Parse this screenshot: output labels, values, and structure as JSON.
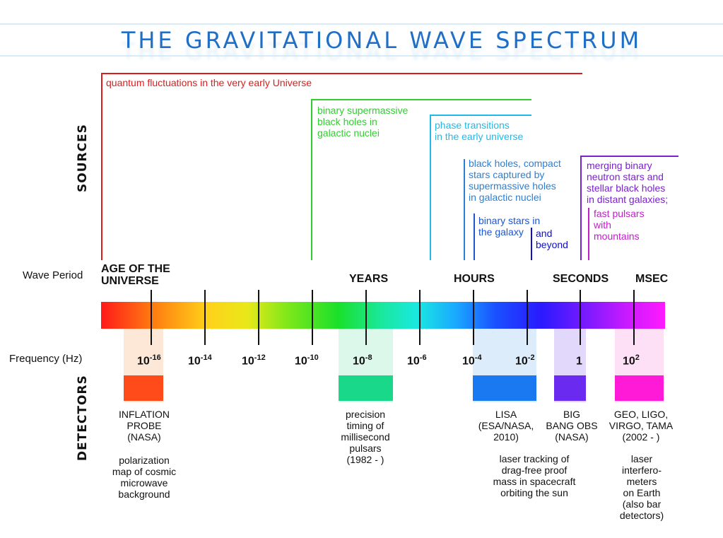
{
  "title": "THE GRAVITATIONAL WAVE SPECTRUM",
  "axis_labels": {
    "sources": "SOURCES",
    "detectors": "DETECTORS",
    "wave_period": "Wave Period",
    "frequency": "Frequency (Hz)"
  },
  "sources": {
    "quantum": {
      "text": "quantum fluctuations in the very early Universe",
      "color": "#e01b1b"
    },
    "smbh": {
      "text": "binary supermassive\nblack holes in\ngalactic nuclei",
      "color": "#33cc33"
    },
    "phase": {
      "text": "phase transitions\nin the early universe",
      "color": "#22b8e8"
    },
    "capture": {
      "text": "black holes, compact\nstars captured by\nsupermassive holes\nin galactic nuclei",
      "color": "#2a7fd6"
    },
    "binary_galaxy": {
      "text": "binary stars in\nthe galaxy",
      "color": "#1e55d0"
    },
    "beyond": {
      "text": "and\nbeyond",
      "color": "#1010c8"
    },
    "merging": {
      "text": "merging binary\nneutron stars and\nstellar black holes\nin distant galaxies;",
      "color": "#7a22cc"
    },
    "pulsars": {
      "text": "fast pulsars\nwith\nmountains",
      "color": "#c020c8"
    }
  },
  "periods": {
    "age": "AGE OF THE\nUNIVERSE",
    "years": "YEARS",
    "hours": "HOURS",
    "seconds": "SECONDS",
    "msec": "MSEC"
  },
  "frequencies": [
    {
      "base": "10",
      "exp": "-16"
    },
    {
      "base": "10",
      "exp": "-14"
    },
    {
      "base": "10",
      "exp": "-12"
    },
    {
      "base": "10",
      "exp": "-10"
    },
    {
      "base": "10",
      "exp": "-8"
    },
    {
      "base": "10",
      "exp": "-6"
    },
    {
      "base": "10",
      "exp": "-4"
    },
    {
      "base": "10",
      "exp": "-2"
    },
    {
      "base": "1",
      "exp": ""
    },
    {
      "base": "10",
      "exp": "2"
    }
  ],
  "detectors": {
    "inflation": {
      "name": "INFLATION\nPROBE\n(NASA)",
      "desc": "polarization\nmap of cosmic\nmicrowave\nbackground",
      "color": "#ff4a1a",
      "band": "#fde8d8"
    },
    "pulsar": {
      "name": "precision\ntiming of\nmillisecond\npulsars\n(1982 - )",
      "color": "#1ad88a",
      "band": "#dcf8ea"
    },
    "lisa": {
      "name": "LISA\n(ESA/NASA,\n2010)",
      "desc": "laser tracking of\ndrag-free proof\nmass in spacecraft\norbiting the sun",
      "color": "#1a78f0",
      "band": "#dcecfb"
    },
    "bbo": {
      "name": "BIG\nBANG OBS\n(NASA)",
      "color": "#6a2af0",
      "band": "#e2d8fb"
    },
    "ligo": {
      "name": "GEO, LIGO,\nVIRGO, TAMA\n(2002 - )",
      "desc": "laser\ninterfero-\nmeters\non Earth\n(also bar\ndetectors)",
      "color": "#ff1ad8",
      "band": "#fde0f6"
    }
  }
}
